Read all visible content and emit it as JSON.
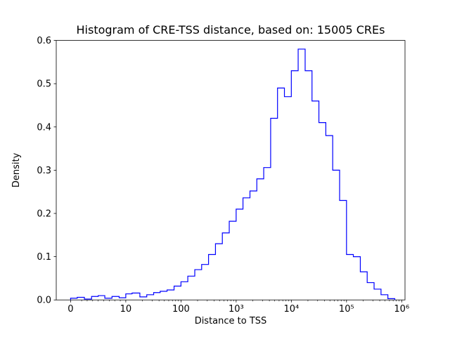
{
  "figure": {
    "background": "#ffffff"
  },
  "chart_data": {
    "type": "histogram-step",
    "title": "Histogram of CRE-TSS distance, based on: 15005 CREs",
    "xlabel": "Distance to TSS",
    "ylabel": "Density",
    "x_scale": "symlog (linear 0-10, log10 above 10)",
    "xlim_axis_units": [
      -0.26,
      6.06
    ],
    "ylim": [
      0,
      0.6
    ],
    "grid": false,
    "legend": "none",
    "x_tick_values": [
      0,
      10,
      100,
      1000,
      10000,
      100000,
      1000000
    ],
    "x_tick_labels": [
      "0",
      "10",
      "100",
      "10³",
      "10⁴",
      "10⁵",
      "10⁶"
    ],
    "y_tick_values": [
      0.0,
      0.1,
      0.2,
      0.3,
      0.4,
      0.5,
      0.6
    ],
    "y_tick_labels": [
      "0.0",
      "0.1",
      "0.2",
      "0.3",
      "0.4",
      "0.5",
      "0.6"
    ],
    "bin_edges": [
      0,
      1.2,
      2.5,
      3.8,
      5,
      6.2,
      7.5,
      8.8,
      10,
      13,
      18,
      24,
      32,
      42,
      56,
      75,
      100,
      133,
      178,
      237,
      316,
      422,
      562,
      750,
      1000,
      1330,
      1780,
      2370,
      3160,
      4220,
      5620,
      7500,
      10000,
      13300,
      17800,
      23700,
      31600,
      42200,
      56200,
      75000,
      100000,
      133000,
      178000,
      237000,
      316000,
      422000,
      562000,
      750000
    ],
    "densities": [
      0.004,
      0.006,
      0.002,
      0.008,
      0.01,
      0.004,
      0.008,
      0.005,
      0.014,
      0.016,
      0.007,
      0.012,
      0.017,
      0.02,
      0.023,
      0.032,
      0.042,
      0.055,
      0.07,
      0.082,
      0.105,
      0.13,
      0.155,
      0.182,
      0.21,
      0.236,
      0.252,
      0.28,
      0.306,
      0.42,
      0.49,
      0.47,
      0.53,
      0.58,
      0.53,
      0.46,
      0.41,
      0.38,
      0.3,
      0.23,
      0.105,
      0.1,
      0.065,
      0.04,
      0.025,
      0.012,
      0.003
    ],
    "colors": {
      "line": "#0000ff",
      "axis": "#000000",
      "text": "#000000",
      "background": "#ffffff"
    }
  }
}
